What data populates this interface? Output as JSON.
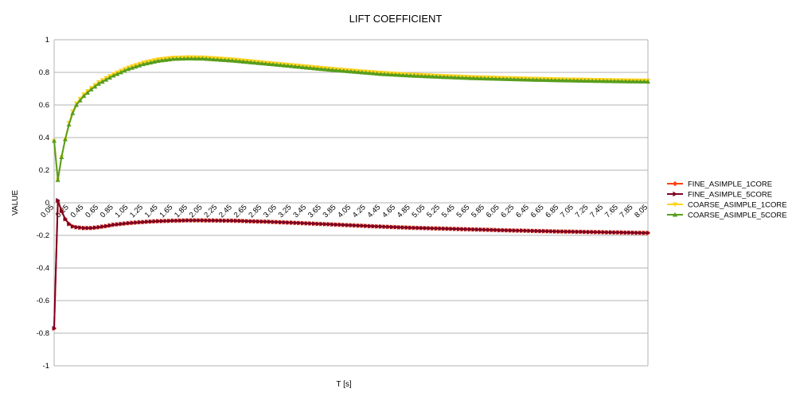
{
  "chart_data": {
    "type": "line",
    "title": "LIFT COEFFICIENT",
    "xlabel": "T [s]",
    "ylabel": "VALUE",
    "xlim": [
      0.05,
      8.05
    ],
    "ylim": [
      -1,
      1
    ],
    "y_ticks": [
      "1",
      "0.8",
      "0.6",
      "0.4",
      "0.2",
      "0",
      "-0.2",
      "-0.4",
      "-0.6",
      "-0.8",
      "-1"
    ],
    "x_tick_labels": [
      "0.05",
      "0.25",
      "0.45",
      "0.65",
      "0.85",
      "1.05",
      "1.25",
      "1.45",
      "1.65",
      "1.85",
      "2.05",
      "2.25",
      "2.45",
      "2.65",
      "2.85",
      "3.05",
      "3.25",
      "3.45",
      "3.65",
      "3.85",
      "4.05",
      "4.25",
      "4.45",
      "4.65",
      "4.85",
      "5.05",
      "5.25",
      "5.45",
      "5.65",
      "5.85",
      "6.05",
      "6.25",
      "6.45",
      "6.65",
      "6.85",
      "7.05",
      "7.25",
      "7.45",
      "7.65",
      "7.85",
      "8.05"
    ],
    "grid": "horizontal",
    "legend_position": "right",
    "series": [
      {
        "name": "FINE_ASIMPLE_1CORE",
        "color": "#ff420e",
        "marker": "diamond",
        "x": [
          0.05,
          0.1,
          0.15,
          0.2,
          0.25,
          0.3,
          0.35,
          0.45,
          0.55,
          0.65,
          0.75,
          0.85,
          1.05,
          1.25,
          1.45,
          1.65,
          1.85,
          2.05,
          2.45,
          2.85,
          3.25,
          3.65,
          4.05,
          4.45,
          4.85,
          5.25,
          5.65,
          6.05,
          6.45,
          6.85,
          7.25,
          7.65,
          8.05
        ],
        "y": [
          -0.77,
          0.01,
          -0.05,
          -0.1,
          -0.13,
          -0.145,
          -0.15,
          -0.155,
          -0.155,
          -0.15,
          -0.143,
          -0.135,
          -0.125,
          -0.118,
          -0.113,
          -0.11,
          -0.108,
          -0.108,
          -0.11,
          -0.115,
          -0.122,
          -0.13,
          -0.138,
          -0.146,
          -0.153,
          -0.158,
          -0.163,
          -0.168,
          -0.172,
          -0.176,
          -0.179,
          -0.182,
          -0.185
        ]
      },
      {
        "name": "FINE_ASIMPLE_5CORE",
        "color": "#7e0021",
        "marker": "triangle-right",
        "x": [
          0.05,
          0.1,
          0.15,
          0.2,
          0.25,
          0.3,
          0.35,
          0.45,
          0.55,
          0.65,
          0.75,
          0.85,
          1.05,
          1.25,
          1.45,
          1.65,
          1.85,
          2.05,
          2.45,
          2.85,
          3.25,
          3.65,
          4.05,
          4.45,
          4.85,
          5.25,
          5.65,
          6.05,
          6.45,
          6.85,
          7.25,
          7.65,
          8.05
        ],
        "y": [
          -0.77,
          0.015,
          -0.05,
          -0.1,
          -0.13,
          -0.145,
          -0.15,
          -0.155,
          -0.155,
          -0.15,
          -0.143,
          -0.135,
          -0.125,
          -0.118,
          -0.113,
          -0.11,
          -0.108,
          -0.108,
          -0.11,
          -0.115,
          -0.122,
          -0.13,
          -0.138,
          -0.146,
          -0.153,
          -0.158,
          -0.163,
          -0.168,
          -0.172,
          -0.176,
          -0.179,
          -0.182,
          -0.185
        ]
      },
      {
        "name": "COARSE_ASIMPLE_1CORE",
        "color": "#ffd320",
        "marker": "triangle-down",
        "x": [
          0.05,
          0.1,
          0.15,
          0.2,
          0.25,
          0.3,
          0.35,
          0.45,
          0.55,
          0.65,
          0.75,
          0.85,
          1.05,
          1.25,
          1.45,
          1.65,
          1.85,
          2.05,
          2.45,
          2.85,
          3.25,
          3.65,
          4.05,
          4.45,
          4.85,
          5.25,
          5.65,
          6.05,
          6.45,
          6.85,
          7.25,
          7.65,
          8.05
        ],
        "y": [
          0.38,
          0.14,
          0.28,
          0.39,
          0.49,
          0.56,
          0.61,
          0.665,
          0.705,
          0.74,
          0.765,
          0.79,
          0.83,
          0.86,
          0.88,
          0.89,
          0.893,
          0.892,
          0.88,
          0.862,
          0.845,
          0.828,
          0.812,
          0.798,
          0.787,
          0.779,
          0.772,
          0.767,
          0.762,
          0.758,
          0.755,
          0.752,
          0.75
        ]
      },
      {
        "name": "COARSE_ASIMPLE_5CORE",
        "color": "#579d1c",
        "marker": "triangle-up",
        "x": [
          0.05,
          0.1,
          0.15,
          0.2,
          0.25,
          0.3,
          0.35,
          0.45,
          0.55,
          0.65,
          0.75,
          0.85,
          1.05,
          1.25,
          1.45,
          1.65,
          1.85,
          2.05,
          2.45,
          2.85,
          3.25,
          3.65,
          4.05,
          4.45,
          4.85,
          5.25,
          5.65,
          6.05,
          6.45,
          6.85,
          7.25,
          7.65,
          8.05
        ],
        "y": [
          0.38,
          0.14,
          0.28,
          0.39,
          0.48,
          0.55,
          0.6,
          0.655,
          0.695,
          0.73,
          0.755,
          0.78,
          0.82,
          0.85,
          0.87,
          0.882,
          0.885,
          0.884,
          0.872,
          0.855,
          0.838,
          0.82,
          0.805,
          0.79,
          0.78,
          0.772,
          0.765,
          0.76,
          0.755,
          0.751,
          0.748,
          0.745,
          0.743
        ]
      }
    ]
  }
}
